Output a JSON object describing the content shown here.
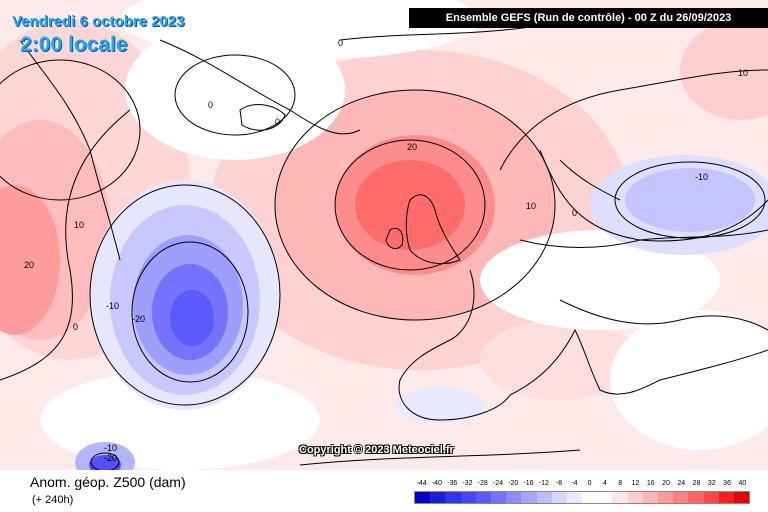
{
  "header": {
    "date": "Vendredi 6 octobre 2023",
    "local_time": "2:00 locale",
    "run_info": "Ensemble GEFS  (Run de contrôle)  -  00 Z du 26/09/2023"
  },
  "map": {
    "copyright": "Copyright © 2023 Meteociel.fr",
    "contour_labels": [
      "0",
      "0",
      "0",
      "0",
      "10",
      "10",
      "10",
      "20",
      "20",
      "-10",
      "-20",
      "-10",
      "0",
      "-10",
      "-20"
    ],
    "features": [
      "high-pressure-anomaly-british-isles",
      "low-pressure-anomaly-central-atlantic",
      "positive-anomaly-west-greenland",
      "negative-anomaly-baltic-russia"
    ]
  },
  "footer": {
    "variable": "Anom. géop. Z500 (dam)",
    "lead": "(+ 240h)"
  },
  "legend": {
    "ticks": [
      "-44",
      "-40",
      "-36",
      "-32",
      "-28",
      "-24",
      "-20",
      "-16",
      "-12",
      "-8",
      "-4",
      "0",
      "4",
      "8",
      "12",
      "16",
      "20",
      "24",
      "28",
      "32",
      "36",
      "40"
    ],
    "colors": [
      "#0000c8",
      "#1e1edc",
      "#3232f0",
      "#4646ff",
      "#5a5aff",
      "#7373ff",
      "#8c8cff",
      "#a5a5ff",
      "#bebeff",
      "#d7d7ff",
      "#ebebff",
      "#ffffff",
      "#ffffff",
      "#ffe6e6",
      "#ffcdcd",
      "#ffb4b4",
      "#ff9b9b",
      "#ff8282",
      "#ff6464",
      "#ff4646",
      "#ff1e1e",
      "#e60000"
    ]
  }
}
